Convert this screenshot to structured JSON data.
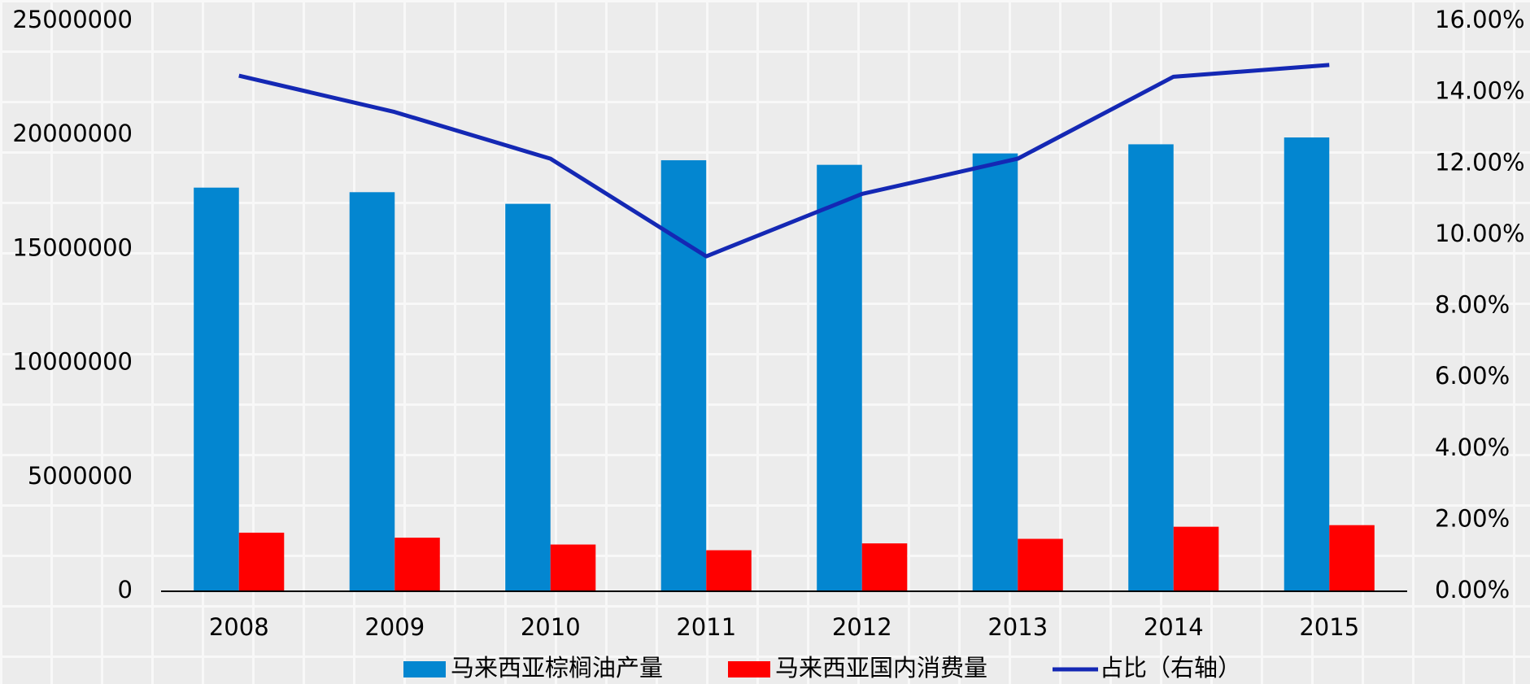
{
  "chart_data": {
    "type": "bar",
    "categories": [
      "2008",
      "2009",
      "2010",
      "2011",
      "2012",
      "2013",
      "2014",
      "2015"
    ],
    "series": [
      {
        "name": "马来西亚棕榈油产量",
        "type": "bar",
        "color": "#0386d0",
        "values": [
          17700000,
          17500000,
          16990000,
          18900000,
          18700000,
          19200000,
          19600000,
          19900000
        ]
      },
      {
        "name": "马来西亚国内消费量",
        "type": "bar",
        "color": "#ff0000",
        "values": [
          2570000,
          2350000,
          2050000,
          1800000,
          2100000,
          2300000,
          2830000,
          2900000
        ]
      },
      {
        "name": "占比（右轴）",
        "type": "line",
        "axis": "y2",
        "color": "#1428b4",
        "values": [
          14.47,
          13.45,
          12.14,
          9.4,
          11.15,
          12.14,
          14.44,
          14.77
        ]
      }
    ],
    "ylim": [
      0,
      25000000
    ],
    "yticks": [
      0,
      5000000,
      10000000,
      15000000,
      20000000,
      25000000
    ],
    "y2lim": [
      0,
      16
    ],
    "y2ticks": [
      {
        "value": 0,
        "label": "0.00%"
      },
      {
        "value": 2,
        "label": "2.00%"
      },
      {
        "value": 4,
        "label": "4.00%"
      },
      {
        "value": 6,
        "label": "6.00%"
      },
      {
        "value": 8,
        "label": "8.00%"
      },
      {
        "value": 10,
        "label": "10.00%"
      },
      {
        "value": 12,
        "label": "12.00%"
      },
      {
        "value": 14,
        "label": "14.00%"
      },
      {
        "value": 16,
        "label": "16.00%"
      }
    ],
    "legend": "bottom"
  }
}
